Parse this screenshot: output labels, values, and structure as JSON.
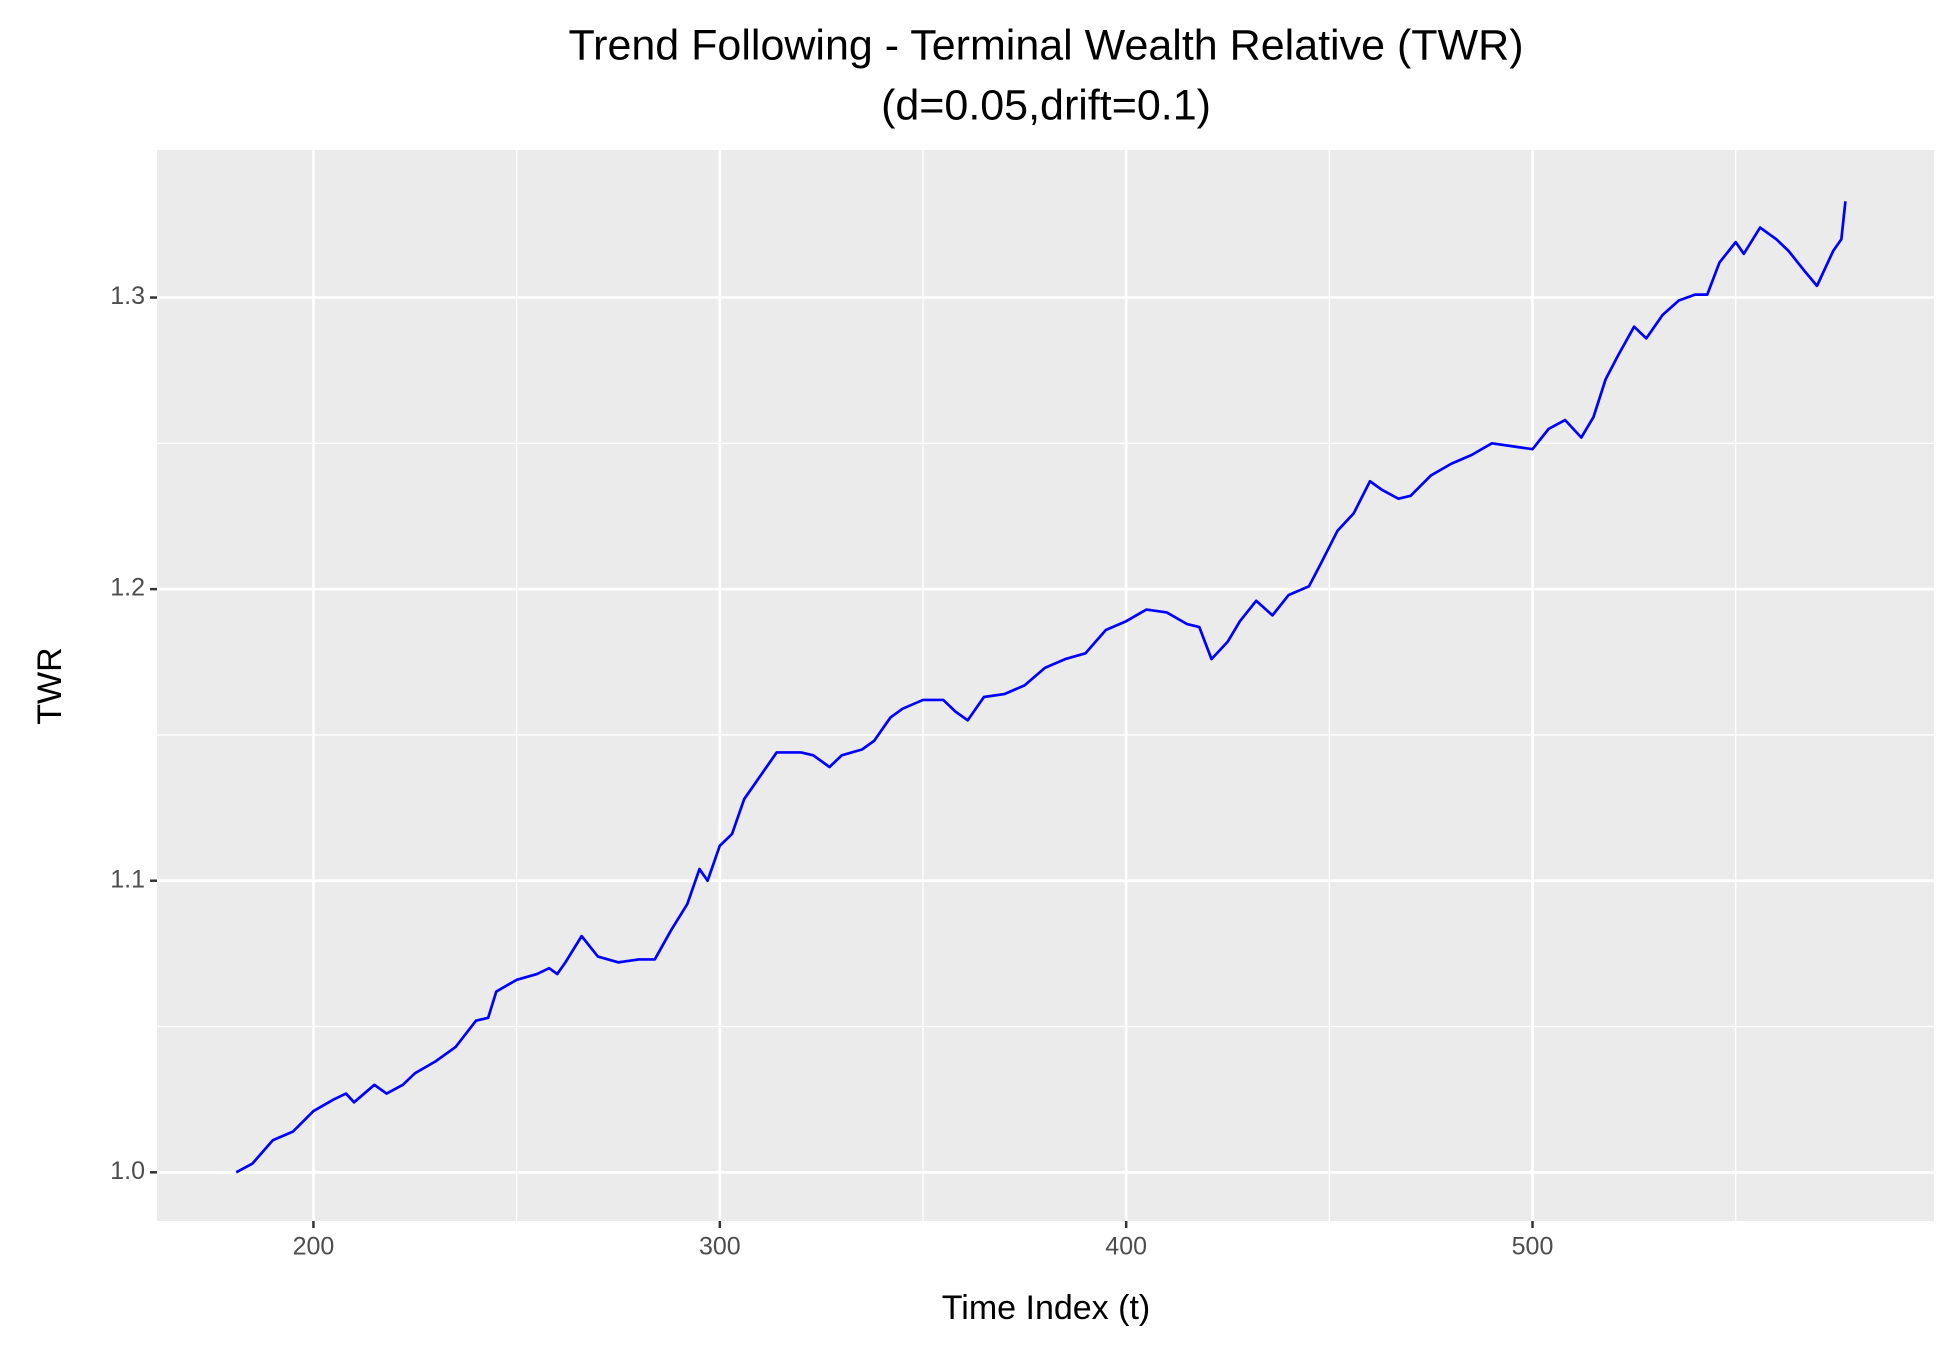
{
  "chart_data": {
    "type": "line",
    "title": "Trend Following - Terminal Wealth Relative (TWR)",
    "subtitle": "(d=0.05,drift=0.1)",
    "x_label": "Time Index (t)",
    "y_label": "TWR",
    "x": [
      181,
      185,
      190,
      195,
      200,
      205,
      208,
      210,
      215,
      218,
      222,
      225,
      230,
      235,
      240,
      243,
      245,
      250,
      255,
      258,
      260,
      262,
      266,
      270,
      275,
      280,
      284,
      288,
      292,
      295,
      297,
      300,
      303,
      306,
      310,
      314,
      320,
      323,
      327,
      330,
      335,
      338,
      342,
      345,
      350,
      355,
      358,
      361,
      365,
      370,
      375,
      380,
      385,
      390,
      395,
      400,
      405,
      410,
      415,
      418,
      421,
      425,
      428,
      432,
      436,
      440,
      445,
      448,
      452,
      456,
      460,
      463,
      467,
      470,
      475,
      480,
      485,
      490,
      495,
      500,
      504,
      508,
      512,
      515,
      518,
      521,
      525,
      528,
      532,
      536,
      540,
      543,
      546,
      550,
      552,
      556,
      560,
      563,
      567,
      570,
      574,
      576,
      577
    ],
    "series": [
      {
        "name": "TWR",
        "color": "#0000ff",
        "values": [
          1.0,
          1.003,
          1.011,
          1.014,
          1.021,
          1.025,
          1.027,
          1.024,
          1.03,
          1.027,
          1.03,
          1.034,
          1.038,
          1.043,
          1.052,
          1.053,
          1.062,
          1.066,
          1.068,
          1.07,
          1.068,
          1.072,
          1.081,
          1.074,
          1.072,
          1.073,
          1.073,
          1.083,
          1.092,
          1.104,
          1.1,
          1.112,
          1.116,
          1.128,
          1.136,
          1.144,
          1.144,
          1.143,
          1.139,
          1.143,
          1.145,
          1.148,
          1.156,
          1.159,
          1.162,
          1.162,
          1.158,
          1.155,
          1.163,
          1.164,
          1.167,
          1.173,
          1.176,
          1.178,
          1.186,
          1.189,
          1.193,
          1.192,
          1.188,
          1.187,
          1.176,
          1.182,
          1.189,
          1.196,
          1.191,
          1.198,
          1.201,
          1.209,
          1.22,
          1.226,
          1.237,
          1.234,
          1.231,
          1.232,
          1.239,
          1.243,
          1.246,
          1.25,
          1.249,
          1.248,
          1.255,
          1.258,
          1.252,
          1.259,
          1.272,
          1.28,
          1.29,
          1.286,
          1.294,
          1.299,
          1.301,
          1.301,
          1.312,
          1.319,
          1.315,
          1.324,
          1.32,
          1.316,
          1.309,
          1.304,
          1.316,
          1.32,
          1.333
        ]
      }
    ],
    "xlim": [
      161.5,
      598.8
    ],
    "xticks": [
      200,
      300,
      400,
      500
    ],
    "x_minor_ticks": [
      250,
      350,
      450,
      550
    ],
    "ylim": [
      0.9833,
      1.3506
    ],
    "yticks": [
      {
        "value": 1,
        "label": "1.0"
      },
      1.1,
      1.2,
      1.3
    ],
    "y_minor_ticks": [
      1.05,
      1.15,
      1.25
    ],
    "grid": true
  }
}
